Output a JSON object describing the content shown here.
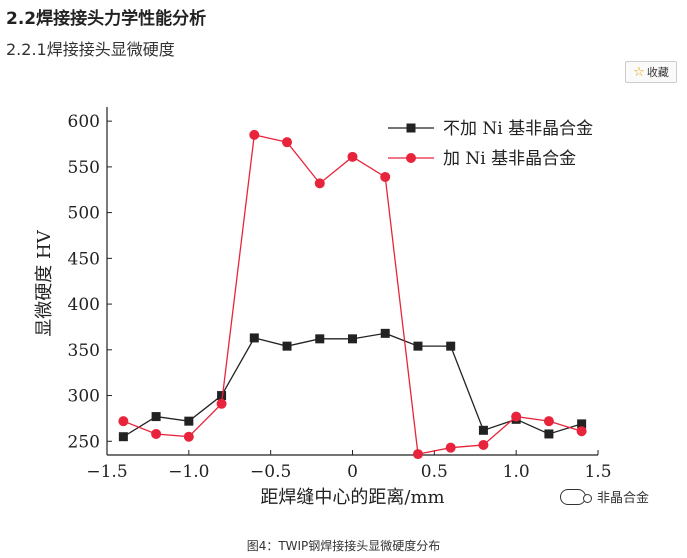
{
  "heading": "2.2焊接接头力学性能分析",
  "subheading": "2.2.1焊接接头显微硬度",
  "favorite": {
    "label": "收藏",
    "icon": "star-icon"
  },
  "watermark": "非晶合金",
  "caption": "图4：TWIP钢焊接接头显微硬度分布",
  "chart_data": {
    "type": "line",
    "xlabel": "距焊缝中心的距离/mm",
    "ylabel": "显微硬度 HV",
    "xlim": [
      -1.5,
      1.5
    ],
    "ylim": [
      235,
      610
    ],
    "xticks": [
      "−1.5",
      "−1.0",
      "−0.5",
      "0",
      "0.5",
      "1.0",
      "1.5"
    ],
    "xtick_values": [
      -1.5,
      -1.0,
      -0.5,
      0,
      0.5,
      1.0,
      1.5
    ],
    "yticks": [
      250,
      300,
      350,
      400,
      450,
      500,
      550,
      600
    ],
    "legend_position": "top-right",
    "grid": false,
    "series": [
      {
        "name": "不加 Ni 基非晶合金",
        "color": "#222222",
        "marker": "square",
        "x": [
          -1.4,
          -1.2,
          -1.0,
          -0.8,
          -0.6,
          -0.4,
          -0.2,
          0.0,
          0.2,
          0.4,
          0.6,
          0.8,
          1.0,
          1.2,
          1.4
        ],
        "y": [
          255,
          277,
          272,
          300,
          363,
          354,
          362,
          362,
          368,
          354,
          354,
          262,
          274,
          258,
          269
        ]
      },
      {
        "name": "加 Ni 基非晶合金",
        "color": "#e8243c",
        "marker": "circle",
        "x": [
          -1.4,
          -1.2,
          -1.0,
          -0.8,
          -0.6,
          -0.4,
          -0.2,
          0.0,
          0.2,
          0.4,
          0.6,
          0.8,
          1.0,
          1.2,
          1.4
        ],
        "y": [
          272,
          258,
          255,
          291,
          585,
          577,
          532,
          561,
          539,
          236,
          243,
          246,
          277,
          272,
          261
        ]
      }
    ]
  }
}
